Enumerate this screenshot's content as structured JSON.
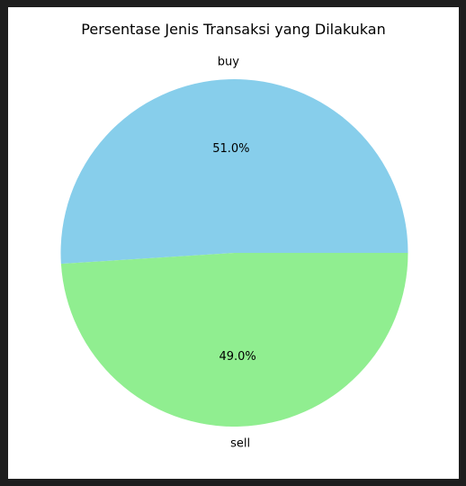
{
  "chart_data": {
    "type": "pie",
    "title": "Persentase Jenis Transaksi yang Dilakukan",
    "labels": [
      "buy",
      "sell"
    ],
    "values": [
      51.0,
      49.0
    ],
    "autopct_labels": [
      "51.0%",
      "49.0%"
    ],
    "colors": [
      "#87ceeb",
      "#90ee90"
    ],
    "startangle_deg": 0,
    "legend": false
  }
}
